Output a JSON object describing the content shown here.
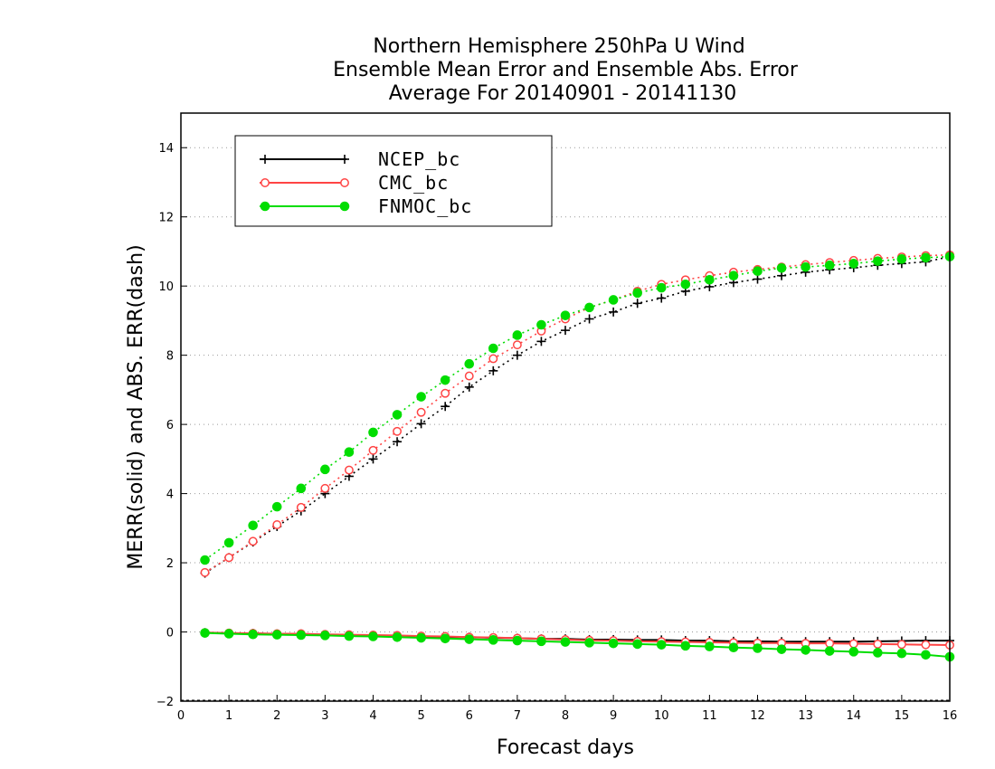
{
  "chart_data": {
    "type": "line",
    "title": [
      "Northern Hemisphere 250hPa U Wind",
      "Ensemble Mean Error and Ensemble Abs. Error",
      "Average For 20140901 - 20141130"
    ],
    "xlabel": "Forecast days",
    "ylabel": "MERR(solid) and ABS. ERR(dash)",
    "xlim": [
      0,
      16
    ],
    "ylim": [
      -2,
      15
    ],
    "xticks": [
      0,
      1,
      2,
      3,
      4,
      5,
      6,
      7,
      8,
      9,
      10,
      11,
      12,
      13,
      14,
      15,
      16
    ],
    "yticks": [
      -2,
      0,
      2,
      4,
      6,
      8,
      10,
      12,
      14
    ],
    "grid": "horizontal dotted",
    "legend_position": "top-left",
    "x": [
      0.5,
      1,
      1.5,
      2,
      2.5,
      3,
      3.5,
      4,
      4.5,
      5,
      5.5,
      6,
      6.5,
      7,
      7.5,
      8,
      8.5,
      9,
      9.5,
      10,
      10.5,
      11,
      11.5,
      12,
      12.5,
      13,
      13.5,
      14,
      14.5,
      15,
      15.5,
      16
    ],
    "series": [
      {
        "name": "NCEP_bc",
        "color": "#000000",
        "marker": "plus",
        "abs_err": [
          1.7,
          2.15,
          2.6,
          3.05,
          3.5,
          4.0,
          4.5,
          5.0,
          5.5,
          6.02,
          6.52,
          7.08,
          7.55,
          8.0,
          8.4,
          8.72,
          9.05,
          9.25,
          9.5,
          9.65,
          9.85,
          9.98,
          10.1,
          10.2,
          10.3,
          10.4,
          10.47,
          10.53,
          10.6,
          10.65,
          10.7,
          10.85
        ],
        "mean_err": [
          -0.02,
          -0.04,
          -0.04,
          -0.06,
          -0.06,
          -0.08,
          -0.1,
          -0.12,
          -0.12,
          -0.14,
          -0.15,
          -0.15,
          -0.17,
          -0.18,
          -0.2,
          -0.2,
          -0.22,
          -0.22,
          -0.23,
          -0.23,
          -0.25,
          -0.25,
          -0.27,
          -0.27,
          -0.28,
          -0.28,
          -0.28,
          -0.28,
          -0.27,
          -0.26,
          -0.25,
          -0.25
        ]
      },
      {
        "name": "CMC_bc",
        "color": "#ff4444",
        "marker": "open-circle",
        "abs_err": [
          1.72,
          2.15,
          2.62,
          3.1,
          3.6,
          4.15,
          4.68,
          5.25,
          5.8,
          6.35,
          6.9,
          7.4,
          7.9,
          8.3,
          8.7,
          9.05,
          9.38,
          9.6,
          9.85,
          10.05,
          10.18,
          10.3,
          10.4,
          10.48,
          10.55,
          10.62,
          10.68,
          10.74,
          10.8,
          10.84,
          10.88,
          10.9
        ],
        "mean_err": [
          -0.02,
          -0.03,
          -0.04,
          -0.05,
          -0.05,
          -0.07,
          -0.08,
          -0.09,
          -0.1,
          -0.12,
          -0.13,
          -0.15,
          -0.16,
          -0.18,
          -0.2,
          -0.22,
          -0.24,
          -0.25,
          -0.27,
          -0.28,
          -0.29,
          -0.3,
          -0.31,
          -0.32,
          -0.32,
          -0.33,
          -0.33,
          -0.34,
          -0.35,
          -0.36,
          -0.37,
          -0.38
        ]
      },
      {
        "name": "FNMOC_bc",
        "color": "#00dd00",
        "marker": "filled-circle",
        "abs_err": [
          2.08,
          2.58,
          3.08,
          3.62,
          4.15,
          4.7,
          5.2,
          5.77,
          6.28,
          6.8,
          7.28,
          7.75,
          8.2,
          8.58,
          8.88,
          9.15,
          9.38,
          9.6,
          9.8,
          9.95,
          10.05,
          10.18,
          10.3,
          10.43,
          10.52,
          10.55,
          10.6,
          10.65,
          10.72,
          10.78,
          10.82,
          10.85
        ],
        "mean_err": [
          -0.03,
          -0.05,
          -0.07,
          -0.08,
          -0.09,
          -0.1,
          -0.12,
          -0.13,
          -0.15,
          -0.17,
          -0.19,
          -0.21,
          -0.23,
          -0.25,
          -0.27,
          -0.29,
          -0.31,
          -0.33,
          -0.35,
          -0.37,
          -0.4,
          -0.42,
          -0.45,
          -0.47,
          -0.5,
          -0.52,
          -0.55,
          -0.57,
          -0.6,
          -0.62,
          -0.66,
          -0.72
        ]
      }
    ]
  }
}
